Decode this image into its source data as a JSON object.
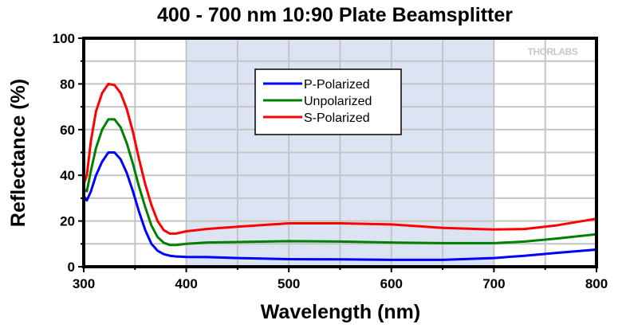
{
  "chart_data": {
    "type": "line",
    "title": "400 - 700 nm 10:90 Plate Beamsplitter",
    "xlabel": "Wavelength (nm)",
    "ylabel": "Reflectance (%)",
    "xlim": [
      300,
      800
    ],
    "ylim": [
      0,
      100
    ],
    "xticks": [
      300,
      400,
      500,
      600,
      700,
      800
    ],
    "yticks": [
      0,
      20,
      40,
      60,
      80,
      100
    ],
    "x_minor_step": 50,
    "y_minor_step": 10,
    "grid": true,
    "highlight_band": {
      "x_range": [
        400,
        700
      ],
      "color": "#dce4f4"
    },
    "legend_position": "top-center",
    "watermark": "THORLABS",
    "series": [
      {
        "name": "P-Polarized",
        "color": "#0000ff",
        "x": [
          300,
          303,
          307,
          312,
          318,
          324,
          330,
          336,
          342,
          348,
          354,
          360,
          366,
          372,
          378,
          384,
          390,
          400,
          420,
          450,
          500,
          550,
          600,
          650,
          700,
          730,
          760,
          800
        ],
        "y": [
          31,
          29,
          33,
          40,
          46,
          50,
          50,
          47,
          41,
          33,
          24,
          16,
          10,
          7,
          5.5,
          4.8,
          4.5,
          4.3,
          4.2,
          3.8,
          3.3,
          3.2,
          3.0,
          3.0,
          3.8,
          4.8,
          6.0,
          7.5
        ]
      },
      {
        "name": "Unpolarized",
        "color": "#008000",
        "x": [
          300,
          303,
          307,
          312,
          318,
          324,
          330,
          336,
          342,
          348,
          354,
          360,
          366,
          372,
          378,
          384,
          390,
          400,
          420,
          450,
          500,
          550,
          600,
          650,
          700,
          730,
          760,
          800
        ],
        "y": [
          34,
          33,
          42,
          52,
          60,
          64.5,
          64.5,
          61,
          54,
          45,
          35,
          26,
          18,
          13,
          10.5,
          9.5,
          9.5,
          10,
          10.6,
          10.8,
          11.2,
          11.0,
          10.6,
          10.3,
          10.3,
          11.0,
          12.3,
          14.2
        ]
      },
      {
        "name": "S-Polarized",
        "color": "#ff0000",
        "x": [
          300,
          303,
          307,
          312,
          318,
          324,
          330,
          336,
          342,
          348,
          354,
          360,
          366,
          372,
          378,
          384,
          390,
          400,
          420,
          450,
          500,
          550,
          600,
          650,
          700,
          730,
          760,
          800
        ],
        "y": [
          36,
          40,
          55,
          68,
          76,
          80,
          79.5,
          76,
          69,
          59,
          47,
          36,
          27,
          20,
          16,
          14.5,
          14.5,
          15.5,
          16.5,
          17.5,
          19.0,
          19.0,
          18.5,
          17.0,
          16.3,
          16.5,
          18.0,
          21.0
        ]
      }
    ]
  }
}
